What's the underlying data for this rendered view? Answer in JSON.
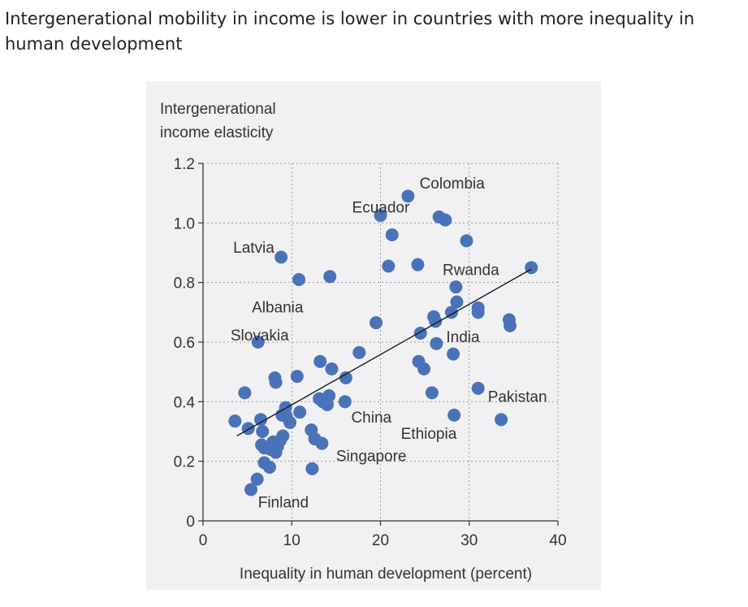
{
  "title": "Intergenerational mobility in income is lower in countries with more inequality in human development",
  "chart_data": {
    "type": "scatter",
    "ylabel_lines": [
      "Intergenerational",
      "income elasticity"
    ],
    "xlabel": "Inequality in human development (percent)",
    "xlim": [
      0,
      40
    ],
    "ylim": [
      0,
      1.2
    ],
    "xticks": [
      "0",
      "10",
      "20",
      "30",
      "40"
    ],
    "yticks": [
      "0",
      "0.2",
      "0.4",
      "0.6",
      "0.8",
      "1.0",
      "1.2"
    ],
    "grid": true,
    "point_color": "#4a72b8",
    "trendline": {
      "x1": 3.8,
      "y1": 0.285,
      "x2": 37,
      "y2": 0.845
    },
    "points": [
      [
        3.6,
        0.335
      ],
      [
        4.7,
        0.43
      ],
      [
        5.1,
        0.31
      ],
      [
        5.4,
        0.105
      ],
      [
        6.1,
        0.14
      ],
      [
        6.2,
        0.6
      ],
      [
        6.5,
        0.34
      ],
      [
        6.6,
        0.255
      ],
      [
        6.7,
        0.3
      ],
      [
        6.9,
        0.245
      ],
      [
        6.9,
        0.195
      ],
      [
        7.5,
        0.18
      ],
      [
        7.6,
        0.24
      ],
      [
        7.9,
        0.265
      ],
      [
        8.1,
        0.48
      ],
      [
        8.2,
        0.465
      ],
      [
        8.2,
        0.23
      ],
      [
        8.4,
        0.25
      ],
      [
        8.7,
        0.27
      ],
      [
        8.8,
        0.885
      ],
      [
        8.9,
        0.355
      ],
      [
        9.0,
        0.285
      ],
      [
        9.3,
        0.38
      ],
      [
        9.4,
        0.35
      ],
      [
        9.8,
        0.33
      ],
      [
        10.6,
        0.485
      ],
      [
        10.8,
        0.81
      ],
      [
        10.9,
        0.365
      ],
      [
        12.2,
        0.305
      ],
      [
        12.3,
        0.175
      ],
      [
        12.6,
        0.275
      ],
      [
        13.1,
        0.41
      ],
      [
        13.2,
        0.535
      ],
      [
        13.4,
        0.26
      ],
      [
        13.5,
        0.4
      ],
      [
        14.0,
        0.39
      ],
      [
        14.2,
        0.42
      ],
      [
        14.3,
        0.82
      ],
      [
        14.5,
        0.51
      ],
      [
        16.0,
        0.4
      ],
      [
        16.1,
        0.48
      ],
      [
        17.6,
        0.565
      ],
      [
        19.5,
        0.665
      ],
      [
        20.0,
        1.025
      ],
      [
        20.9,
        0.855
      ],
      [
        21.3,
        0.96
      ],
      [
        23.1,
        1.09
      ],
      [
        24.2,
        0.86
      ],
      [
        24.3,
        0.535
      ],
      [
        24.5,
        0.63
      ],
      [
        24.9,
        0.51
      ],
      [
        25.8,
        0.43
      ],
      [
        26.0,
        0.685
      ],
      [
        26.2,
        0.67
      ],
      [
        26.3,
        0.595
      ],
      [
        26.6,
        1.02
      ],
      [
        27.3,
        1.01
      ],
      [
        28.0,
        0.7
      ],
      [
        28.2,
        0.56
      ],
      [
        28.3,
        0.355
      ],
      [
        28.5,
        0.785
      ],
      [
        28.6,
        0.735
      ],
      [
        29.7,
        0.94
      ],
      [
        31.0,
        0.715
      ],
      [
        31.0,
        0.7
      ],
      [
        31.0,
        0.445
      ],
      [
        33.6,
        0.34
      ],
      [
        34.5,
        0.675
      ],
      [
        34.6,
        0.655
      ],
      [
        37.0,
        0.85
      ]
    ],
    "annotations": [
      {
        "text": "Colombia",
        "x": 24.4,
        "y": 1.115,
        "anchor": "start"
      },
      {
        "text": "Ecuador",
        "x": 16.8,
        "y": 1.035,
        "anchor": "start"
      },
      {
        "text": "Latvia",
        "x": 3.4,
        "y": 0.9,
        "anchor": "start"
      },
      {
        "text": "Rwanda",
        "x": 27.0,
        "y": 0.825,
        "anchor": "start"
      },
      {
        "text": "Albania",
        "x": 5.5,
        "y": 0.7,
        "anchor": "start"
      },
      {
        "text": "Slovakia",
        "x": 3.1,
        "y": 0.605,
        "anchor": "start"
      },
      {
        "text": "India",
        "x": 27.4,
        "y": 0.6,
        "anchor": "start"
      },
      {
        "text": "Pakistan",
        "x": 32.1,
        "y": 0.4,
        "anchor": "start"
      },
      {
        "text": "China",
        "x": 16.7,
        "y": 0.33,
        "anchor": "start"
      },
      {
        "text": "Ethiopia",
        "x": 22.3,
        "y": 0.275,
        "anchor": "start"
      },
      {
        "text": "Singapore",
        "x": 15.0,
        "y": 0.2,
        "anchor": "start"
      },
      {
        "text": "Finland",
        "x": 6.2,
        "y": 0.045,
        "anchor": "start"
      }
    ]
  }
}
